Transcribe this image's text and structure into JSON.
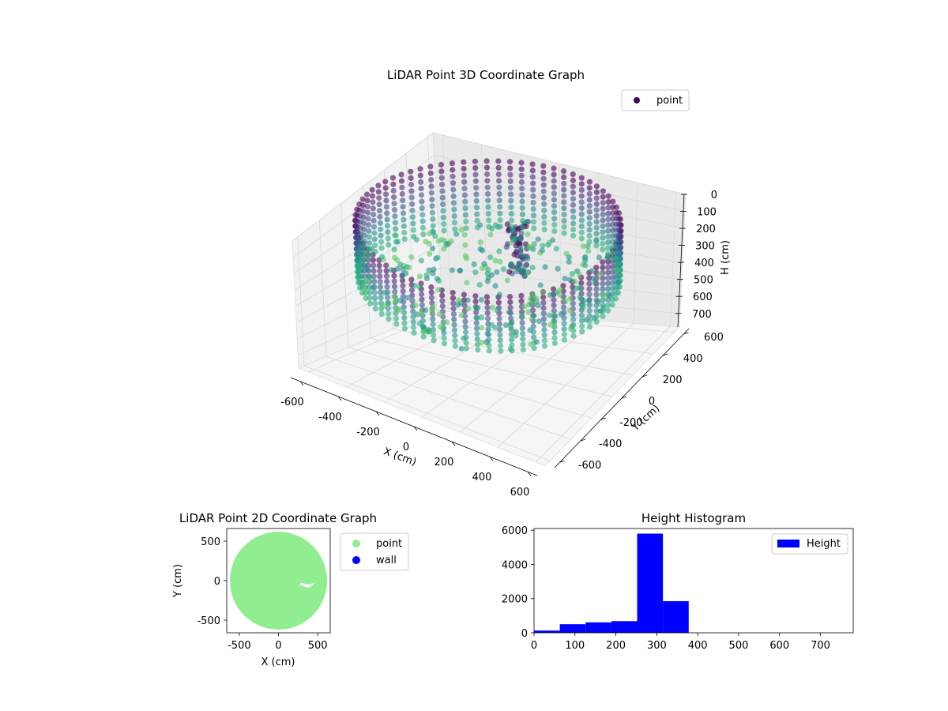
{
  "chart_data": [
    {
      "type": "scatter",
      "title": "LiDAR Point 3D Coordinate Graph",
      "xlabel": "X (cm)",
      "ylabel": "Y (cm)",
      "zlabel": "H (cm)",
      "xlim": [
        -650,
        650
      ],
      "ylim": [
        -650,
        650
      ],
      "zlim": [
        0,
        780
      ],
      "z_inverted": true,
      "x_ticks": [
        -600,
        -400,
        -200,
        0,
        200,
        400,
        600
      ],
      "y_ticks": [
        -600,
        -400,
        -200,
        0,
        200,
        400,
        600
      ],
      "z_ticks": [
        0,
        100,
        200,
        300,
        400,
        500,
        600,
        700
      ],
      "colormap": "viridis",
      "grid": true,
      "legend": {
        "entries": [
          "point"
        ],
        "placement": "top-right"
      },
      "series": [
        {
          "name": "point",
          "color": "#440154",
          "description_shape": "cylindrical wall of radius ~600 cm spanning H 0-780, with an inward protrusion near x=100,y=100"
        }
      ]
    },
    {
      "type": "scatter",
      "title": "LiDAR Point 2D Coordinate Graph",
      "xlabel": "X (cm)",
      "ylabel": "Y (cm)",
      "xlim": [
        -660,
        660
      ],
      "ylim": [
        -660,
        660
      ],
      "x_ticks": [
        -500,
        0,
        500
      ],
      "y_ticks": [
        -500,
        0,
        500
      ],
      "legend": {
        "entries": [
          "point",
          "wall"
        ],
        "placement": "outside-right"
      },
      "series": [
        {
          "name": "point",
          "color": "#90ee90"
        },
        {
          "name": "wall",
          "color": "#0000ff"
        }
      ],
      "disk": {
        "center": [
          0,
          0
        ],
        "radius": 620
      }
    },
    {
      "type": "bar",
      "title": "Height Histogram",
      "xlabel": "",
      "ylabel": "",
      "xlim": [
        0,
        780
      ],
      "ylim": [
        0,
        6100
      ],
      "x_ticks": [
        0,
        100,
        200,
        300,
        400,
        500,
        600,
        700
      ],
      "y_ticks": [
        0,
        2000,
        4000,
        6000
      ],
      "legend": {
        "entries": [
          "Height"
        ],
        "placement": "top-right"
      },
      "color": "#0000ff",
      "bins": [
        {
          "start": 0,
          "end": 63,
          "count": 130
        },
        {
          "start": 63,
          "end": 126,
          "count": 500
        },
        {
          "start": 126,
          "end": 189,
          "count": 610
        },
        {
          "start": 189,
          "end": 252,
          "count": 680
        },
        {
          "start": 252,
          "end": 315,
          "count": 5800
        },
        {
          "start": 315,
          "end": 378,
          "count": 1850
        },
        {
          "start": 378,
          "end": 441,
          "count": 0
        },
        {
          "start": 441,
          "end": 504,
          "count": 0
        },
        {
          "start": 504,
          "end": 567,
          "count": 0
        },
        {
          "start": 567,
          "end": 630,
          "count": 0
        },
        {
          "start": 630,
          "end": 693,
          "count": 0
        },
        {
          "start": 693,
          "end": 756,
          "count": 0
        }
      ]
    }
  ]
}
